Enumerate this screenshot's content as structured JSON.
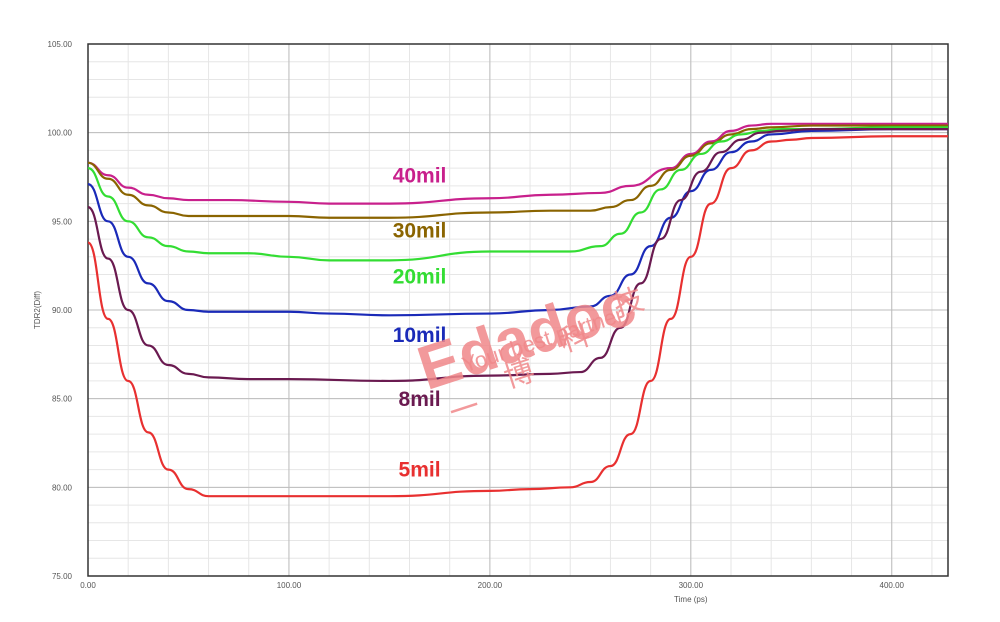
{
  "chart_data": {
    "type": "line",
    "title": "",
    "xlabel": "Time (ps)",
    "ylabel": "TDR2(Diff)",
    "xlim": [
      0,
      428
    ],
    "ylim": [
      75,
      105
    ],
    "x_ticks": [
      0,
      100,
      200,
      300,
      400
    ],
    "x_tick_labels": [
      "0.00",
      "100.00",
      "200.00",
      "300.00",
      "400.00"
    ],
    "y_ticks": [
      75,
      80,
      85,
      90,
      95,
      100,
      105
    ],
    "y_tick_labels": [
      "75.00",
      "80.00",
      "85.00",
      "90.00",
      "95.00",
      "100.00",
      "105.00"
    ],
    "grid": true,
    "minor_grid": true,
    "legend": "none",
    "series": [
      {
        "name": "40mil",
        "color": "#c8208c",
        "label_x": 165,
        "label_y": 97.2,
        "x": [
          0,
          10,
          20,
          30,
          40,
          50,
          70,
          100,
          120,
          150,
          200,
          230,
          255,
          270,
          290,
          300,
          310,
          320,
          330,
          340,
          360,
          400,
          428
        ],
        "y": [
          98.3,
          97.6,
          96.9,
          96.5,
          96.3,
          96.2,
          96.2,
          96.1,
          96.0,
          96.0,
          96.3,
          96.5,
          96.6,
          97.0,
          98.0,
          98.8,
          99.5,
          100.1,
          100.4,
          100.5,
          100.5,
          100.5,
          100.5
        ]
      },
      {
        "name": "30mil",
        "color": "#8a6400",
        "label_x": 165,
        "label_y": 94.1,
        "x": [
          0,
          10,
          20,
          30,
          40,
          50,
          70,
          100,
          120,
          150,
          200,
          230,
          250,
          260,
          270,
          280,
          290,
          300,
          310,
          320,
          330,
          340,
          360,
          400,
          428
        ],
        "y": [
          98.3,
          97.4,
          96.5,
          95.9,
          95.5,
          95.3,
          95.3,
          95.3,
          95.2,
          95.2,
          95.5,
          95.6,
          95.6,
          95.8,
          96.2,
          97.0,
          97.9,
          98.7,
          99.4,
          99.9,
          100.2,
          100.3,
          100.4,
          100.4,
          100.4
        ]
      },
      {
        "name": "20mil",
        "color": "#33dd33",
        "label_x": 165,
        "label_y": 91.5,
        "x": [
          0,
          10,
          20,
          30,
          40,
          50,
          60,
          80,
          100,
          120,
          150,
          200,
          220,
          240,
          255,
          265,
          275,
          285,
          295,
          305,
          315,
          325,
          335,
          345,
          360,
          400,
          428
        ],
        "y": [
          98.0,
          96.4,
          95.0,
          94.1,
          93.6,
          93.3,
          93.2,
          93.2,
          93.0,
          92.8,
          92.8,
          93.3,
          93.3,
          93.3,
          93.6,
          94.3,
          95.5,
          96.8,
          97.9,
          98.8,
          99.5,
          99.9,
          100.1,
          100.2,
          100.2,
          100.3,
          100.3
        ]
      },
      {
        "name": "10mil",
        "color": "#1a2ab8",
        "label_x": 165,
        "label_y": 88.2,
        "x": [
          0,
          10,
          20,
          30,
          40,
          50,
          60,
          80,
          100,
          120,
          150,
          200,
          230,
          250,
          260,
          270,
          280,
          290,
          300,
          310,
          320,
          330,
          340,
          360,
          400,
          428
        ],
        "y": [
          97.1,
          95.0,
          93.0,
          91.5,
          90.5,
          90.0,
          89.9,
          89.9,
          89.9,
          89.8,
          89.7,
          89.8,
          90.0,
          90.2,
          90.8,
          92.0,
          93.6,
          95.2,
          96.7,
          97.9,
          98.9,
          99.5,
          99.9,
          100.1,
          100.2,
          100.2
        ]
      },
      {
        "name": "8mil",
        "color": "#6a1a50",
        "label_x": 165,
        "label_y": 84.6,
        "x": [
          0,
          10,
          20,
          30,
          40,
          50,
          60,
          80,
          100,
          150,
          200,
          230,
          245,
          255,
          265,
          275,
          285,
          295,
          305,
          315,
          325,
          335,
          345,
          360,
          400,
          428
        ],
        "y": [
          95.8,
          92.9,
          90.0,
          88.0,
          86.9,
          86.4,
          86.2,
          86.1,
          86.1,
          86.0,
          86.3,
          86.4,
          86.5,
          87.3,
          89.0,
          91.5,
          94.0,
          96.2,
          97.8,
          98.9,
          99.6,
          100.0,
          100.1,
          100.2,
          100.2,
          100.2
        ]
      },
      {
        "name": "5mil",
        "color": "#e83030",
        "label_x": 165,
        "label_y": 80.6,
        "x": [
          0,
          10,
          20,
          30,
          40,
          50,
          60,
          80,
          100,
          150,
          200,
          220,
          240,
          250,
          260,
          270,
          280,
          290,
          300,
          310,
          320,
          330,
          340,
          350,
          360,
          400,
          428
        ],
        "y": [
          93.8,
          89.5,
          86.0,
          83.1,
          81.0,
          79.9,
          79.5,
          79.5,
          79.5,
          79.5,
          79.8,
          79.9,
          80.0,
          80.3,
          81.2,
          83.0,
          86.0,
          89.5,
          93.0,
          96.0,
          98.0,
          99.0,
          99.5,
          99.6,
          99.7,
          99.8,
          99.8
        ]
      }
    ]
  },
  "watermark": {
    "brand": "Edadoc",
    "tagline": "Your best partner",
    "chinese": [
      "一",
      "博",
      "科",
      "技"
    ]
  }
}
